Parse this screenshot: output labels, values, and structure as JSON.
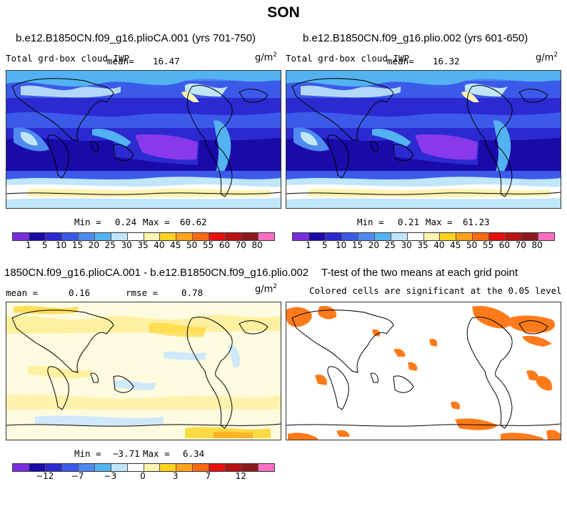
{
  "season": "SON",
  "panels": {
    "top_left": {
      "title": "b.e12.B1850CN.f09_g16.plioCA.001 (yrs 701-750)",
      "variable": "Total grd-box cloud IWP",
      "mean_label": "mean=",
      "mean": "16.47",
      "units_base": "g/m",
      "units_exp": "2",
      "min_label": "Min =",
      "min": "0.24",
      "max_label": "Max =",
      "max": "60.62"
    },
    "top_right": {
      "title": "b.e12.B1850CN.f09_g16.plio.002 (yrs 601-650)",
      "variable": "Total grd-box cloud IWP",
      "mean_label": "mean=",
      "mean": "16.32",
      "units_base": "g/m",
      "units_exp": "2",
      "min_label": "Min =",
      "min": "0.21",
      "max_label": "Max =",
      "max": "61.23"
    },
    "bottom_left": {
      "title": "1850CN.f09_g16.plioCA.001 - b.e12.B1850CN.f09_g16.plio.002",
      "mean_label": "mean =",
      "mean": "0.16",
      "rmse_label": "rmse =",
      "rmse": "0.78",
      "units_base": "g/m",
      "units_exp": "2",
      "min_label": "Min =",
      "min": "−3.71",
      "max_label": "Max =",
      "max": "6.34"
    },
    "bottom_right": {
      "title": "T-test of the two means at each grid point",
      "subtitle": "Colored cells are significant at the 0.05 level"
    }
  },
  "colorbars": {
    "abs_colors": [
      "#7a2ee0",
      "#1a0aa8",
      "#2a2ad0",
      "#3c5aea",
      "#4f8af0",
      "#53b3f2",
      "#bfe6fb",
      "#ffffff",
      "#fff3b0",
      "#ffd21e",
      "#ffa31a",
      "#ff6a10",
      "#e80f0f",
      "#b81212",
      "#8c1a1a",
      "#ff6fc2"
    ],
    "abs_ticks": [
      "1",
      "5",
      "10",
      "15",
      "20",
      "25",
      "30",
      "35",
      "40",
      "45",
      "50",
      "55",
      "60",
      "70",
      "80"
    ],
    "diff_colors": [
      "#7a2ee0",
      "#1a0aa8",
      "#2a2ad0",
      "#3c5aea",
      "#4f8af0",
      "#53b3f2",
      "#bfe6fb",
      "#ffffff",
      "#fff3b0",
      "#ffd21e",
      "#ffa31a",
      "#ff6a10",
      "#e80f0f",
      "#b81212",
      "#8c1a1a",
      "#ff6fc2"
    ],
    "diff_ticks": [
      "−12",
      "−7",
      "−3",
      "0",
      "3",
      "7",
      "12"
    ],
    "diff_tick_slots": [
      2,
      4,
      6,
      8,
      10,
      12,
      14
    ]
  },
  "map_colors": {
    "deep": "#1a0aa8",
    "mid": "#2a2ad0",
    "blue": "#3c5aea",
    "light": "#53b3f2",
    "pale": "#bfe6fb",
    "violet": "#9a3cf0",
    "diff_base": "#fffbe0",
    "diff_yellow": "#fff0a0",
    "diff_blue": "#cfe8fb",
    "sig": "#ff7a1a"
  }
}
